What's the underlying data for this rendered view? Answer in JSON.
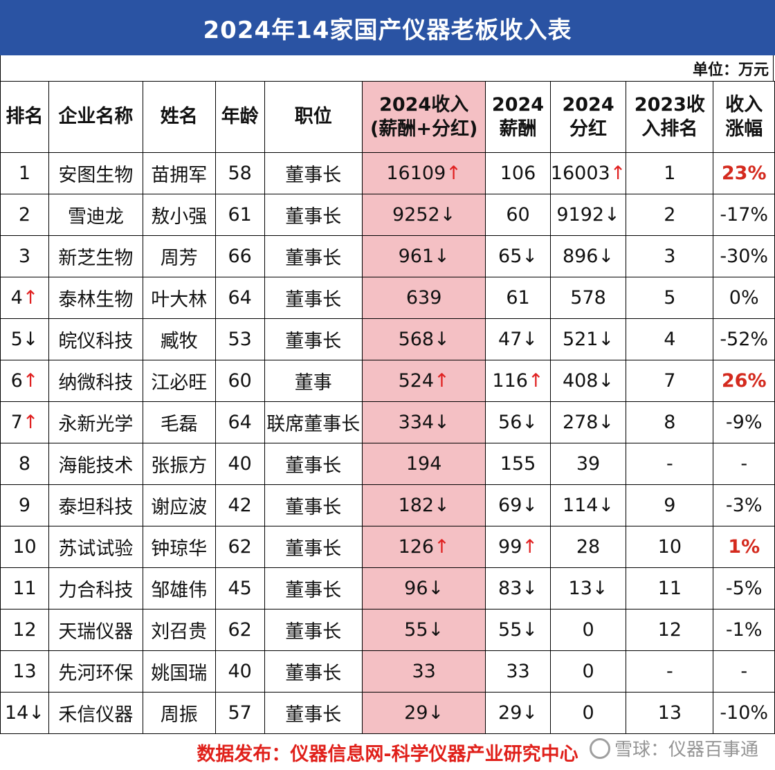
{
  "title": "2024年14家国产仪器老板收入表",
  "unit": "单位：万元",
  "headers": {
    "rank": "排名",
    "company": "企业名称",
    "name": "姓名",
    "age": "年龄",
    "position": "职位",
    "income_line1": "2024收入",
    "income_line2": "(薪酬+分红)",
    "salary_line1": "2024",
    "salary_line2": "薪酬",
    "dividend_line1": "2024",
    "dividend_line2": "分红",
    "rank2023_line1": "2023收",
    "rank2023_line2": "入排名",
    "growth_line1": "收入",
    "growth_line2": "涨幅"
  },
  "rows": [
    {
      "rank": "1",
      "company": "安图生物",
      "name": "苗拥军",
      "age": "58",
      "position": "董事长",
      "income": "16109",
      "salary": "106",
      "dividend": "16003",
      "rank2023": "1",
      "growth": "23%"
    },
    {
      "rank": "2",
      "company": "雪迪龙",
      "name": "敖小强",
      "age": "61",
      "position": "董事长",
      "income": "9252",
      "salary": "60",
      "dividend": "9192",
      "rank2023": "2",
      "growth": "-17%"
    },
    {
      "rank": "3",
      "company": "新芝生物",
      "name": "周芳",
      "age": "66",
      "position": "董事长",
      "income": "961",
      "salary": "65",
      "dividend": "896",
      "rank2023": "3",
      "growth": "-30%"
    },
    {
      "rank": "4",
      "company": "泰林生物",
      "name": "叶大林",
      "age": "64",
      "position": "董事长",
      "income": "639",
      "salary": "61",
      "dividend": "578",
      "rank2023": "5",
      "growth": "0%"
    },
    {
      "rank": "5",
      "company": "皖仪科技",
      "name": "臧牧",
      "age": "53",
      "position": "董事长",
      "income": "568",
      "salary": "47",
      "dividend": "521",
      "rank2023": "4",
      "growth": "-52%"
    },
    {
      "rank": "6",
      "company": "纳微科技",
      "name": "江必旺",
      "age": "60",
      "position": "董事",
      "income": "524",
      "salary": "116",
      "dividend": "408",
      "rank2023": "7",
      "growth": "26%"
    },
    {
      "rank": "7",
      "company": "永新光学",
      "name": "毛磊",
      "age": "64",
      "position": "联席董事长",
      "income": "334",
      "salary": "56",
      "dividend": "278",
      "rank2023": "8",
      "growth": "-9%"
    },
    {
      "rank": "8",
      "company": "海能技术",
      "name": "张振方",
      "age": "40",
      "position": "董事长",
      "income": "194",
      "salary": "155",
      "dividend": "39",
      "rank2023": "-",
      "growth": "-"
    },
    {
      "rank": "9",
      "company": "泰坦科技",
      "name": "谢应波",
      "age": "42",
      "position": "董事长",
      "income": "182",
      "salary": "69",
      "dividend": "114",
      "rank2023": "9",
      "growth": "-3%"
    },
    {
      "rank": "10",
      "company": "苏试试验",
      "name": "钟琼华",
      "age": "62",
      "position": "董事长",
      "income": "126",
      "salary": "99",
      "dividend": "28",
      "rank2023": "10",
      "growth": "1%"
    },
    {
      "rank": "11",
      "company": "力合科技",
      "name": "邹雄伟",
      "age": "45",
      "position": "董事长",
      "income": "96",
      "salary": "83",
      "dividend": "13",
      "rank2023": "11",
      "growth": "-5%"
    },
    {
      "rank": "12",
      "company": "天瑞仪器",
      "name": "刘召贵",
      "age": "62",
      "position": "董事长",
      "income": "55",
      "salary": "55",
      "dividend": "0",
      "rank2023": "12",
      "growth": "-1%"
    },
    {
      "rank": "13",
      "company": "先河环保",
      "name": "姚国瑞",
      "age": "40",
      "position": "董事长",
      "income": "33",
      "salary": "33",
      "dividend": "0",
      "rank2023": "-",
      "growth": "-"
    },
    {
      "rank": "14",
      "company": "禾信仪器",
      "name": "周振",
      "age": "57",
      "position": "董事长",
      "income": "29",
      "salary": "29",
      "dividend": "0",
      "rank2023": "13",
      "growth": "-10%"
    }
  ],
  "arrows": {
    "up": "↑",
    "down": "↓"
  },
  "footer": "数据发布：仪器信息网-科学仪器产业研究中心",
  "watermark": "雪球：仪器百事通",
  "colors": {
    "title_bg": "#2a53a3",
    "highlight": "#f4c0c4",
    "up_arrow": "#e02020",
    "positive_growth": "#d42a1e",
    "footer_text": "#e0201a"
  }
}
